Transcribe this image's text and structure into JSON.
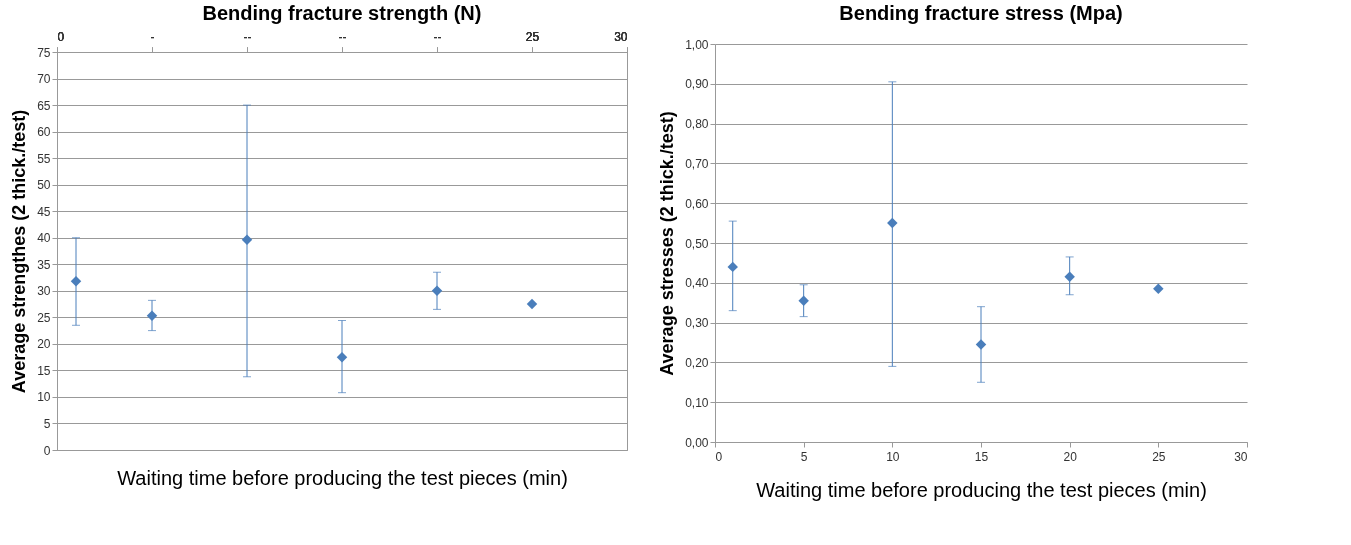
{
  "chart_data": [
    {
      "type": "scatter",
      "title": "Bending fracture strength (N)",
      "xlabel": "Waiting time before producing the test pieces (min)",
      "ylabel": "Average strengthes (2 thick./test)",
      "x": [
        1,
        5,
        10,
        15,
        20,
        25
      ],
      "values": [
        31.8,
        25.3,
        39.6,
        17.5,
        30,
        27.5
      ],
      "errors": [
        [
          23.5,
          40
        ],
        [
          22.5,
          28.2
        ],
        [
          13.8,
          65
        ],
        [
          10.8,
          24.4
        ],
        [
          26.5,
          33.5
        ],
        null
      ],
      "color": "#4a7ebb",
      "marker": "diamond",
      "grid": "y",
      "xlim": [
        0,
        30
      ],
      "xticks": [
        0,
        {
          "value": 5,
          "label": "-"
        },
        {
          "value": 10,
          "label": "--"
        },
        {
          "value": 15,
          "label": "--"
        },
        {
          "value": 20,
          "label": "--"
        },
        25,
        30
      ],
      "ylim": [
        0,
        75
      ],
      "yticks": [
        0,
        5,
        10,
        15,
        20,
        25,
        30,
        35,
        40,
        45,
        50,
        55,
        60,
        65,
        70,
        75
      ]
    },
    {
      "type": "scatter",
      "title": "Bending fracture stress (Mpa)",
      "xlabel": "Waiting time before producing the test pieces (min)",
      "ylabel": "Average stresses (2 thick./test)",
      "x": [
        1,
        5,
        10,
        15,
        20,
        25
      ],
      "values": [
        0.44,
        0.355,
        0.55,
        0.245,
        0.415,
        0.385
      ],
      "errors": [
        [
          0.33,
          0.555
        ],
        [
          0.315,
          0.395
        ],
        [
          0.19,
          0.905
        ],
        [
          0.15,
          0.34
        ],
        [
          0.37,
          0.465
        ],
        null
      ],
      "color": "#4a7ebb",
      "marker": "diamond",
      "grid": "y",
      "xlim": [
        0,
        30
      ],
      "xticks": [
        0,
        5,
        10,
        15,
        20,
        25,
        30
      ],
      "ylim": [
        0,
        1
      ],
      "yticks": [
        {
          "value": 0,
          "label": "0,00"
        },
        {
          "value": 0.1,
          "label": "0,10"
        },
        {
          "value": 0.2,
          "label": "0,20"
        },
        {
          "value": 0.3,
          "label": "0,30"
        },
        {
          "value": 0.4,
          "label": "0,40"
        },
        {
          "value": 0.5,
          "label": "0,50"
        },
        {
          "value": 0.6,
          "label": "0,60"
        },
        {
          "value": 0.7,
          "label": "0,70"
        },
        {
          "value": 0.8,
          "label": "0,80"
        },
        {
          "value": 0.9,
          "label": "0,90"
        },
        {
          "value": 1,
          "label": "1,00"
        }
      ]
    }
  ]
}
